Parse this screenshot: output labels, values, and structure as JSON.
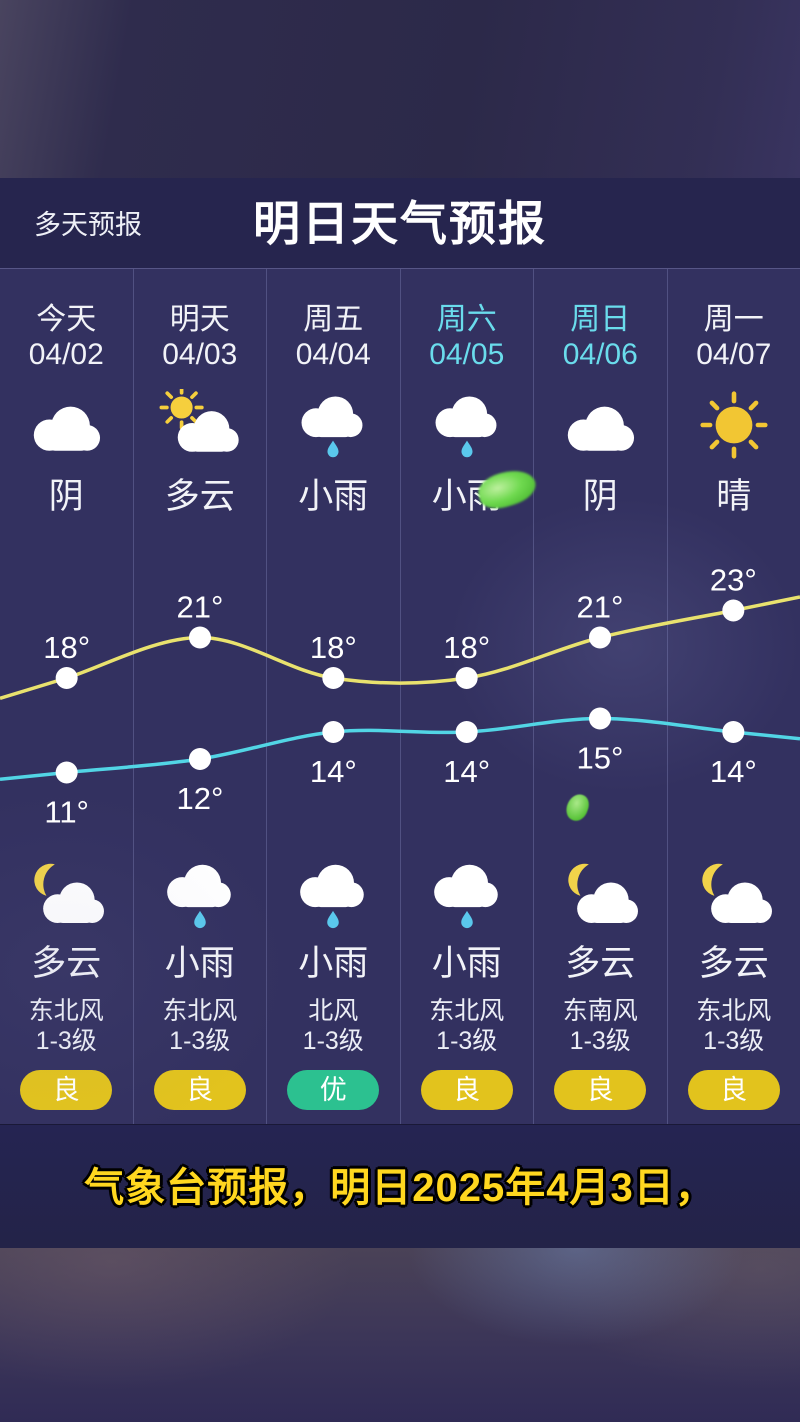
{
  "header": {
    "section_label": "多天预报",
    "title": "明日天气预报"
  },
  "forecast": {
    "columns": [
      {
        "day": "今天",
        "date": "04/02",
        "weekend": false,
        "day_icon": "overcast",
        "day_condition": "阴",
        "night_icon": "cloudy-night",
        "night_condition": "多云",
        "wind_direction": "东北风",
        "wind_level": "1-3级",
        "aqi_label": "良",
        "aqi_color": "#e2c31d"
      },
      {
        "day": "明天",
        "date": "04/03",
        "weekend": false,
        "day_icon": "cloudy-day",
        "day_condition": "多云",
        "night_icon": "light-rain",
        "night_condition": "小雨",
        "wind_direction": "东北风",
        "wind_level": "1-3级",
        "aqi_label": "良",
        "aqi_color": "#e2c31d"
      },
      {
        "day": "周五",
        "date": "04/04",
        "weekend": false,
        "day_icon": "light-rain",
        "day_condition": "小雨",
        "night_icon": "light-rain",
        "night_condition": "小雨",
        "wind_direction": "北风",
        "wind_level": "1-3级",
        "aqi_label": "优",
        "aqi_color": "#2cc190"
      },
      {
        "day": "周六",
        "date": "04/05",
        "weekend": true,
        "day_icon": "light-rain",
        "day_condition": "小雨",
        "night_icon": "light-rain",
        "night_condition": "小雨",
        "wind_direction": "东北风",
        "wind_level": "1-3级",
        "aqi_label": "良",
        "aqi_color": "#e2c31d"
      },
      {
        "day": "周日",
        "date": "04/06",
        "weekend": true,
        "day_icon": "overcast",
        "day_condition": "阴",
        "night_icon": "cloudy-night",
        "night_condition": "多云",
        "wind_direction": "东南风",
        "wind_level": "1-3级",
        "aqi_label": "良",
        "aqi_color": "#e2c31d"
      },
      {
        "day": "周一",
        "date": "04/07",
        "weekend": false,
        "day_icon": "sunny",
        "day_condition": "晴",
        "night_icon": "cloudy-night",
        "night_condition": "多云",
        "wind_direction": "东北风",
        "wind_level": "1-3级",
        "aqi_label": "良",
        "aqi_color": "#e2c31d"
      }
    ]
  },
  "chart_data": {
    "type": "line",
    "categories": [
      "04/02",
      "04/03",
      "04/04",
      "04/05",
      "04/06",
      "04/07"
    ],
    "series": [
      {
        "name": "day-high-temp",
        "color": "#e9e26e",
        "values": [
          18,
          21,
          18,
          18,
          21,
          23
        ]
      },
      {
        "name": "night-low-temp",
        "color": "#52d5e5",
        "values": [
          11,
          12,
          14,
          14,
          15,
          14
        ]
      }
    ],
    "unit": "°",
    "ylim": [
      8,
      26
    ],
    "grid": false,
    "legend": "none"
  },
  "subtitle": "气象台预报，明日2025年4月3日，",
  "colors": {
    "weekend_accent": "#6adcec",
    "aqi_good": "#e2c31d",
    "aqi_excellent": "#2cc190",
    "high_line": "#e9e26e",
    "low_line": "#52d5e5",
    "panel_bg": "#333160",
    "header_bg": "#26254e",
    "subtitle_text": "#ffd71f"
  }
}
